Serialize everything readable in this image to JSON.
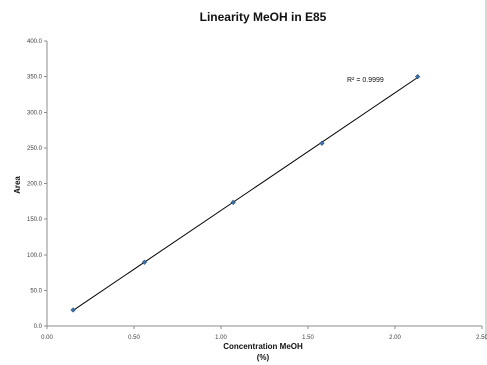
{
  "chart_data": {
    "type": "scatter",
    "title": "Linearity MeOH in E85",
    "xlabel_line1": "Concentration MeOH",
    "xlabel_line2": "(%)",
    "ylabel": "Area",
    "xlim": [
      0,
      2.5
    ],
    "ylim": [
      0,
      400
    ],
    "x_ticks": [
      "0.00",
      "0.50",
      "1.00",
      "1.50",
      "2.00",
      "2.50"
    ],
    "y_ticks": [
      "0.0",
      "50.0",
      "100.0",
      "150.0",
      "200.0",
      "250.0",
      "300.0",
      "350.0",
      "400.0"
    ],
    "grid": false,
    "legend": "none",
    "series": [
      {
        "x": [
          0.15,
          0.56,
          1.07,
          1.58,
          2.13
        ],
        "y": [
          22.5,
          89.5,
          173.5,
          256.5,
          350.0
        ],
        "trendline": "linear",
        "color": "#3b6ea5"
      }
    ],
    "annotation": "R² = 0.9999"
  }
}
